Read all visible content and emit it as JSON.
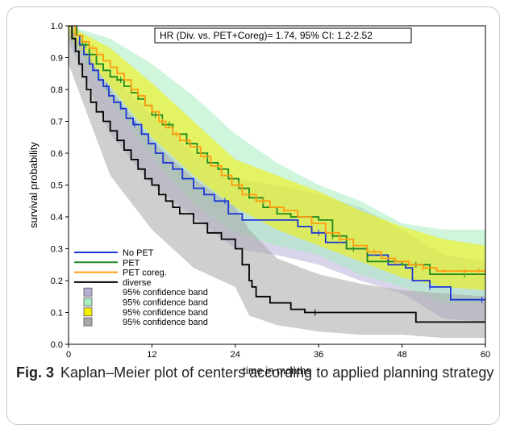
{
  "chart_data": {
    "type": "line",
    "subtype": "kaplan-meier step curves with 95% confidence bands",
    "title": "",
    "annotation": "HR (Div. vs. PET+Coreg)= 1.74, 95% CI: 1.2-2.52",
    "xlabel": "time in months",
    "ylabel": "survival probability",
    "xlim": [
      0,
      60
    ],
    "ylim": [
      0.0,
      1.0
    ],
    "xticks": [
      "0",
      "12",
      "24",
      "36",
      "48",
      "60"
    ],
    "yticks": [
      "0.0",
      "0.1",
      "0.2",
      "0.3",
      "0.4",
      "0.5",
      "0.6",
      "0.7",
      "0.8",
      "0.9",
      "1.0"
    ],
    "grid": false,
    "legend_position": "bottom-left",
    "series": [
      {
        "name": "No PET",
        "color": "#1a35d6",
        "x": [
          0,
          1,
          1.6,
          2.2,
          3,
          3.5,
          4.3,
          5,
          5.8,
          6.5,
          7.5,
          8.3,
          9.3,
          10.5,
          11.5,
          12.5,
          13.6,
          15,
          16.4,
          18,
          19.5,
          21,
          23,
          25,
          27,
          30,
          33,
          35,
          37,
          40,
          43,
          46,
          48.5,
          49.5,
          52,
          55,
          57,
          60
        ],
        "y": [
          1.0,
          0.97,
          0.94,
          0.91,
          0.88,
          0.86,
          0.83,
          0.81,
          0.78,
          0.76,
          0.74,
          0.71,
          0.69,
          0.66,
          0.63,
          0.6,
          0.57,
          0.55,
          0.52,
          0.49,
          0.47,
          0.45,
          0.41,
          0.39,
          0.39,
          0.39,
          0.37,
          0.35,
          0.32,
          0.3,
          0.28,
          0.25,
          0.24,
          0.2,
          0.18,
          0.14,
          0.14,
          0.14
        ],
        "censor_x": [
          5.5,
          9.5,
          22.5,
          36,
          45,
          52,
          59.5
        ]
      },
      {
        "name": "PET",
        "color": "#1e8a1e",
        "x": [
          0,
          1.2,
          2,
          3,
          4,
          5,
          6,
          7,
          8,
          9,
          10,
          11,
          12,
          13.5,
          15,
          17,
          18.5,
          20,
          21.5,
          23,
          24.5,
          26,
          28,
          30,
          32,
          36,
          38,
          40,
          43,
          48,
          52,
          60
        ],
        "y": [
          1.0,
          0.97,
          0.94,
          0.91,
          0.88,
          0.86,
          0.84,
          0.83,
          0.81,
          0.79,
          0.77,
          0.75,
          0.72,
          0.69,
          0.66,
          0.63,
          0.6,
          0.57,
          0.55,
          0.52,
          0.49,
          0.46,
          0.43,
          0.41,
          0.4,
          0.39,
          0.34,
          0.3,
          0.26,
          0.25,
          0.22,
          0.22
        ],
        "censor_x": [
          2.5,
          7.5,
          12.5,
          14.5,
          17.5,
          22,
          38,
          41,
          50,
          57
        ]
      },
      {
        "name": "PET coreg.",
        "color": "#ff9b10",
        "x": [
          0,
          1,
          2,
          3,
          4,
          5,
          6,
          7,
          8,
          9,
          10,
          11,
          12,
          13,
          14,
          15,
          16,
          17.5,
          19,
          20.5,
          22,
          23.5,
          25,
          27,
          29,
          31,
          33,
          35,
          37,
          39,
          41,
          43,
          45,
          47,
          49,
          51,
          53,
          55,
          60
        ],
        "y": [
          1.0,
          0.97,
          0.95,
          0.93,
          0.91,
          0.89,
          0.87,
          0.85,
          0.83,
          0.8,
          0.78,
          0.75,
          0.73,
          0.7,
          0.68,
          0.66,
          0.64,
          0.62,
          0.59,
          0.56,
          0.53,
          0.5,
          0.47,
          0.45,
          0.43,
          0.42,
          0.4,
          0.38,
          0.35,
          0.33,
          0.31,
          0.29,
          0.27,
          0.26,
          0.25,
          0.24,
          0.23,
          0.23,
          0.23
        ],
        "censor_x": [
          3.5,
          9,
          13.5,
          15.5,
          19.5,
          24.5,
          28,
          31,
          35,
          39,
          44,
          47,
          51,
          54,
          57,
          59
        ]
      },
      {
        "name": "diverse",
        "color": "#000000",
        "x": [
          0,
          0.5,
          1,
          1.5,
          2,
          2.6,
          3.2,
          4,
          5,
          6,
          7,
          8,
          9,
          10,
          11,
          12,
          13,
          14,
          15,
          16,
          18,
          20,
          22,
          24,
          25,
          26,
          26.4,
          27,
          29,
          32,
          34,
          40,
          50,
          60
        ],
        "y": [
          1.0,
          0.96,
          0.92,
          0.88,
          0.84,
          0.8,
          0.76,
          0.73,
          0.7,
          0.67,
          0.64,
          0.61,
          0.58,
          0.55,
          0.52,
          0.5,
          0.47,
          0.45,
          0.43,
          0.41,
          0.38,
          0.35,
          0.33,
          0.3,
          0.25,
          0.2,
          0.18,
          0.15,
          0.13,
          0.11,
          0.1,
          0.1,
          0.07,
          0.07
        ],
        "censor_x": [
          35.5
        ]
      }
    ],
    "bands": [
      {
        "name": "95% confidence band",
        "color": "#b8b0d8",
        "x": [
          0,
          6,
          12,
          18,
          24,
          30,
          36,
          42,
          48,
          54,
          60
        ],
        "upper": [
          1.0,
          0.85,
          0.72,
          0.6,
          0.52,
          0.5,
          0.47,
          0.43,
          0.36,
          0.28,
          0.26
        ],
        "lower": [
          0.95,
          0.66,
          0.5,
          0.4,
          0.3,
          0.28,
          0.25,
          0.2,
          0.16,
          0.08,
          0.07
        ]
      },
      {
        "name": "95% confidence band",
        "color": "#a8ecc0",
        "x": [
          0,
          6,
          12,
          18,
          24,
          30,
          36,
          42,
          48,
          54,
          60
        ],
        "upper": [
          1.0,
          0.96,
          0.88,
          0.78,
          0.66,
          0.57,
          0.5,
          0.45,
          0.38,
          0.36,
          0.36
        ],
        "lower": [
          0.96,
          0.77,
          0.59,
          0.44,
          0.35,
          0.31,
          0.28,
          0.22,
          0.18,
          0.13,
          0.13
        ]
      },
      {
        "name": "95% confidence band",
        "color": "#f4f000",
        "x": [
          0,
          6,
          12,
          18,
          24,
          30,
          36,
          42,
          48,
          54,
          60
        ],
        "upper": [
          1.0,
          0.93,
          0.82,
          0.7,
          0.58,
          0.53,
          0.48,
          0.42,
          0.37,
          0.33,
          0.31
        ],
        "lower": [
          0.97,
          0.81,
          0.65,
          0.53,
          0.43,
          0.36,
          0.31,
          0.26,
          0.21,
          0.18,
          0.17
        ]
      },
      {
        "name": "95% confidence band",
        "color": "#a8a8a8",
        "x": [
          0,
          6,
          12,
          18,
          24,
          26,
          30,
          36,
          42,
          48,
          54,
          60
        ],
        "upper": [
          1.0,
          0.8,
          0.64,
          0.52,
          0.43,
          0.36,
          0.27,
          0.22,
          0.19,
          0.17,
          0.16,
          0.15
        ],
        "lower": [
          0.88,
          0.53,
          0.36,
          0.24,
          0.18,
          0.09,
          0.06,
          0.04,
          0.03,
          0.03,
          0.02,
          0.02
        ]
      }
    ]
  },
  "caption": {
    "label": "Fig. 3",
    "text": "Kaplan–Meier plot of centers according to applied planning strategy"
  }
}
